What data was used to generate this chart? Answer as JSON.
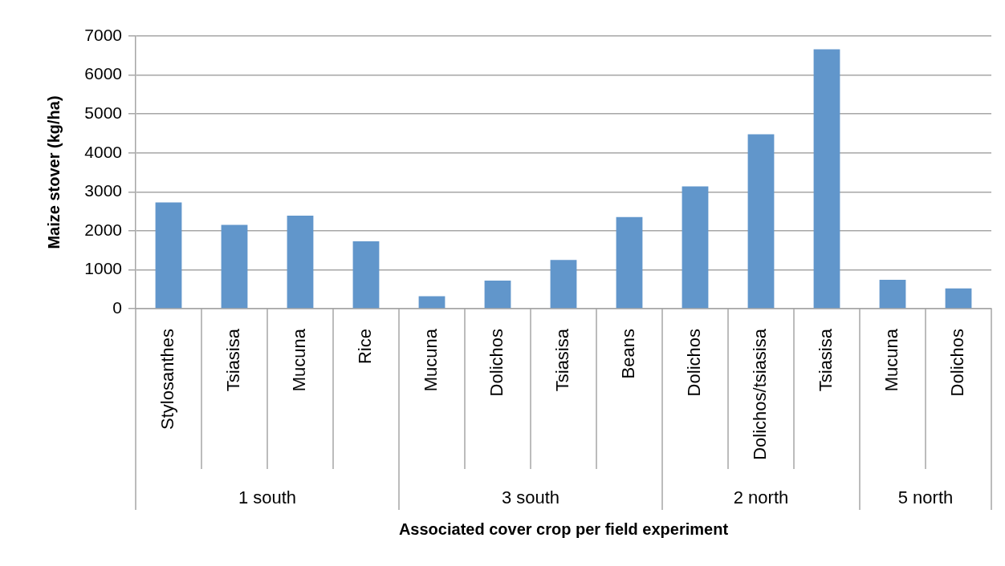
{
  "chart_data": {
    "type": "bar",
    "xlabel": "Associated cover crop per field experiment",
    "ylabel": "Maize stover (kg/ha)",
    "categories": [
      "Stylosanthes",
      "Tsiasisa",
      "Mucuna",
      "Rice",
      "Mucuna",
      "Dolichos",
      "Tsiasisa",
      "Beans",
      "Dolichos",
      "Dolichos/tsiasisa",
      "Tsiasisa",
      "Mucuna",
      "Dolichos"
    ],
    "values": [
      2730,
      2150,
      2390,
      1730,
      320,
      720,
      1250,
      2350,
      3140,
      4480,
      6660,
      740,
      520
    ],
    "color": "#6196cb",
    "ylim": [
      0,
      7000
    ],
    "yticks": [
      0,
      1000,
      2000,
      3000,
      4000,
      5000,
      6000,
      7000
    ],
    "grid": "y",
    "annotations": [
      "1 south",
      "3 south",
      "2 north",
      "5 north"
    ]
  }
}
